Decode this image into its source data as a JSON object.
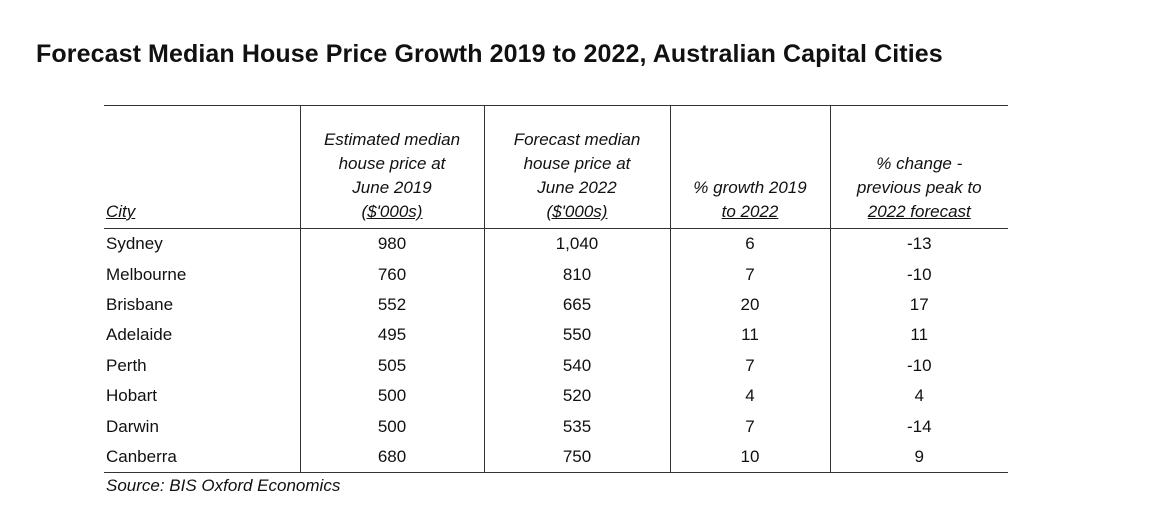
{
  "chart_data": {
    "type": "table",
    "title": "Forecast Median House Price Growth 2019 to 2022, Australian Capital Cities",
    "columns": [
      {
        "key": "city",
        "lines": [
          "City"
        ]
      },
      {
        "key": "est_2019",
        "lines": [
          "Estimated median",
          "house price at",
          "June 2019",
          "($'000s)"
        ]
      },
      {
        "key": "fc_2022",
        "lines": [
          "Forecast median",
          "house price at",
          "June 2022",
          "($'000s)"
        ]
      },
      {
        "key": "growth",
        "lines": [
          "% growth 2019",
          "to 2022"
        ]
      },
      {
        "key": "peak_change",
        "lines": [
          "% change -",
          "previous peak to",
          "2022 forecast"
        ]
      }
    ],
    "rows": [
      {
        "city": "Sydney",
        "est_2019": "980",
        "fc_2022": "1,040",
        "growth": "6",
        "peak_change": "-13"
      },
      {
        "city": "Melbourne",
        "est_2019": "760",
        "fc_2022": "810",
        "growth": "7",
        "peak_change": "-10"
      },
      {
        "city": "Brisbane",
        "est_2019": "552",
        "fc_2022": "665",
        "growth": "20",
        "peak_change": "17"
      },
      {
        "city": "Adelaide",
        "est_2019": "495",
        "fc_2022": "550",
        "growth": "11",
        "peak_change": "11"
      },
      {
        "city": "Perth",
        "est_2019": "505",
        "fc_2022": "540",
        "growth": "7",
        "peak_change": "-10"
      },
      {
        "city": "Hobart",
        "est_2019": "500",
        "fc_2022": "520",
        "growth": "4",
        "peak_change": "4"
      },
      {
        "city": "Darwin",
        "est_2019": "500",
        "fc_2022": "535",
        "growth": "7",
        "peak_change": "-14"
      },
      {
        "city": "Canberra",
        "est_2019": "680",
        "fc_2022": "750",
        "growth": "10",
        "peak_change": "9"
      }
    ],
    "source": "Source: BIS Oxford Economics"
  }
}
